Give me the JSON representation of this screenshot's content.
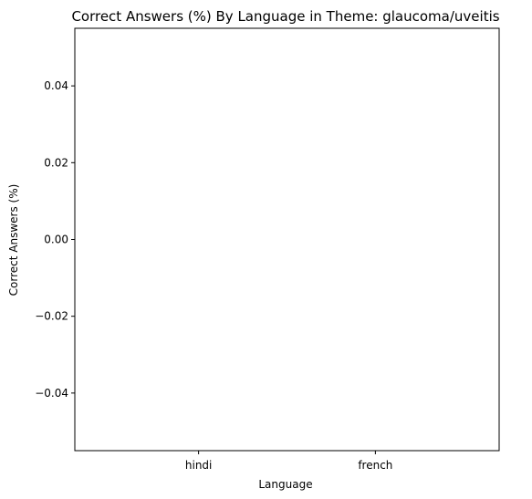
{
  "chart_data": {
    "type": "bar",
    "title": "Correct Answers (%) By Language in Theme: glaucoma/uveitis",
    "xlabel": "Language",
    "ylabel": "Correct Answers (%)",
    "categories": [
      "hindi",
      "french"
    ],
    "values": [
      0,
      0
    ],
    "ylim": [
      -0.055,
      0.055
    ],
    "yticks": [
      0.04,
      0.02,
      0.0,
      -0.02,
      -0.04
    ],
    "ytick_labels": [
      "0.04",
      "0.02",
      "0.00",
      "−0.02",
      "−0.04"
    ],
    "grid": false,
    "bar_color": "#1f77b4",
    "legend": "none"
  }
}
